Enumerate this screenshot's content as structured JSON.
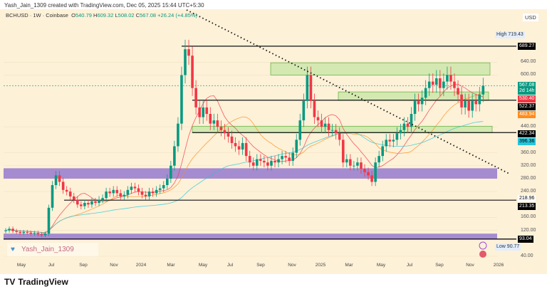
{
  "header": {
    "credit": "Yash_Jain_1309 created with TradingView.com, Dec 05, 2025 15:44 UTC+5:30",
    "symbol": "BCHUSD · 1W · Coinbase",
    "o_label": "O",
    "o": "540.79",
    "h_label": "H",
    "h": "609.32",
    "l_label": "L",
    "l": "508.02",
    "c_label": "C",
    "c": "567.08",
    "change": "+26.24 (+4.85%)",
    "currency": "USD"
  },
  "watermark": "Yash_Jain_1309",
  "brand": "TradingView",
  "price_tags": [
    {
      "text": "689.27",
      "price": 689.27,
      "bg": "#000000",
      "fg": "#ffffff"
    },
    {
      "text": "567.08",
      "sub": "2d 14h",
      "price": 567.08,
      "bg": "#089981",
      "fg": "#ffffff"
    },
    {
      "text": "530.40",
      "price": 530.4,
      "bg": "#f23645",
      "fg": "#ffffff"
    },
    {
      "text": "522.37",
      "price": 522.37,
      "bg": "#000000",
      "fg": "#ffffff"
    },
    {
      "text": "483.94",
      "price": 483.94,
      "bg": "#ff8c1a",
      "fg": "#ffffff"
    },
    {
      "text": "422.34",
      "price": 422.34,
      "bg": "#000000",
      "fg": "#ffffff"
    },
    {
      "text": "396.36",
      "price": 396.36,
      "bg": "#26c6da",
      "fg": "#000000"
    },
    {
      "text": "218.96",
      "price": 218.96,
      "bg": "#ffffff",
      "fg": "#000000"
    },
    {
      "text": "213.35",
      "price": 213.35,
      "bg": "#000000",
      "fg": "#ffffff"
    },
    {
      "text": "93.04",
      "price": 93.04,
      "bg": "#000000",
      "fg": "#ffffff"
    }
  ],
  "high": {
    "label": "High",
    "value": "719.43"
  },
  "low": {
    "label": "Low",
    "value": "90.77"
  },
  "chart_data": {
    "type": "candlestick",
    "title": "BCHUSD · 1W · Coinbase",
    "ylim": [
      40,
      720
    ],
    "yticks": [
      40,
      120,
      160,
      240,
      280,
      320,
      360,
      440,
      600,
      640
    ],
    "xticks": [
      "May",
      "Jul",
      "Sep",
      "Nov",
      "2024",
      "Mar",
      "May",
      "Jul",
      "Sep",
      "Nov",
      "2025",
      "Mar",
      "May",
      "Jul",
      "Sep",
      "Nov",
      "2026"
    ],
    "closes": [
      120,
      125,
      118,
      115,
      112,
      115,
      113,
      110,
      112,
      108,
      105,
      110,
      190,
      260,
      290,
      270,
      245,
      240,
      225,
      215,
      200,
      195,
      205,
      200,
      210,
      205,
      215,
      220,
      240,
      235,
      245,
      235,
      225,
      230,
      245,
      255,
      250,
      240,
      230,
      225,
      240,
      235,
      245,
      250,
      260,
      280,
      320,
      380,
      450,
      600,
      680,
      660,
      560,
      500,
      470,
      500,
      480,
      450,
      460,
      440,
      430,
      420,
      410,
      390,
      380,
      370,
      390,
      350,
      330,
      320,
      340,
      335,
      330,
      320,
      335,
      330,
      340,
      350,
      345,
      335,
      360,
      400,
      460,
      520,
      600,
      520,
      470,
      460,
      440,
      450,
      430,
      430,
      420,
      400,
      330,
      340,
      320,
      320,
      330,
      310,
      300,
      290,
      270,
      330,
      350,
      380,
      400,
      395,
      400,
      420,
      430,
      450,
      440,
      480,
      520,
      510,
      530,
      560,
      580,
      570,
      590,
      560,
      580,
      600,
      580,
      560,
      540,
      500,
      520,
      490,
      520,
      510,
      540,
      567.08
    ],
    "moving_averages": [
      {
        "period": 10,
        "color": "#f23645"
      },
      {
        "period": 20,
        "color": "#ff8c1a"
      },
      {
        "period": 50,
        "color": "#26c6da"
      }
    ],
    "horizontal_levels": [
      689.27,
      522.37,
      422.34,
      213.35,
      93.04
    ],
    "supply_demand_zones": [
      {
        "from": 600,
        "to": 638,
        "color": "green"
      },
      {
        "from": 522,
        "to": 548,
        "color": "green"
      },
      {
        "from": 422,
        "to": 442,
        "color": "green"
      },
      {
        "from": 280,
        "to": 312,
        "color": "purple"
      },
      {
        "from": 93,
        "to": 110,
        "color": "purple"
      }
    ],
    "trendline": {
      "from_price": 760,
      "to_price": 280,
      "style": "dotted"
    }
  }
}
